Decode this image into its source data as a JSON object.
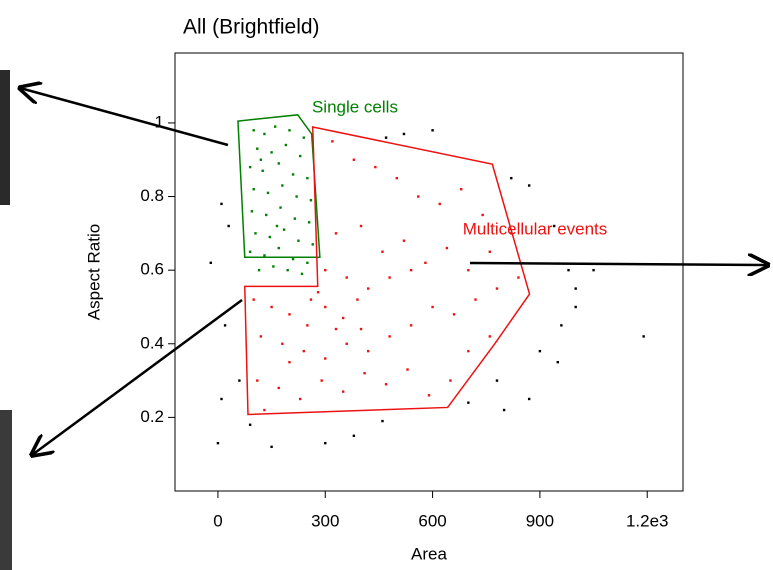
{
  "chart_data": {
    "type": "scatter",
    "title": "All (Brightfield)",
    "x_label": "Area",
    "y_label": "Aspect Ratio",
    "xlim": [
      -120,
      1300
    ],
    "ylim": [
      0,
      1.19
    ],
    "xticks": [
      0,
      300,
      600,
      900,
      {
        "value": 1200,
        "label": "1.2e3"
      }
    ],
    "yticks": [
      0.2,
      0.4,
      0.6,
      0.8,
      1
    ],
    "series": [
      {
        "color": "#000000",
        "x": [
          600,
          520,
          470,
          820,
          870,
          940,
          980,
          1000,
          960,
          900,
          950,
          1190,
          870,
          800,
          700,
          460,
          380,
          300,
          150,
          90,
          0,
          10,
          60,
          20,
          -20,
          30,
          10,
          1000,
          780,
          1050
        ],
        "y": [
          0.98,
          0.97,
          0.96,
          0.85,
          0.83,
          0.72,
          0.6,
          0.55,
          0.45,
          0.38,
          0.35,
          0.42,
          0.25,
          0.22,
          0.24,
          0.19,
          0.15,
          0.13,
          0.12,
          0.18,
          0.13,
          0.25,
          0.3,
          0.45,
          0.62,
          0.72,
          0.78,
          0.5,
          0.3,
          0.6
        ]
      },
      {
        "color": "#008000",
        "x": [
          100,
          130,
          160,
          200,
          240,
          110,
          150,
          190,
          230,
          90,
          125,
          170,
          210,
          250,
          100,
          140,
          180,
          220,
          260,
          95,
          135,
          175,
          215,
          255,
          105,
          145,
          185,
          225,
          265,
          90,
          130,
          170,
          210,
          250,
          115,
          155,
          195,
          235,
          120,
          165
        ],
        "y": [
          0.98,
          0.97,
          0.99,
          0.98,
          0.96,
          0.93,
          0.92,
          0.94,
          0.91,
          0.88,
          0.87,
          0.89,
          0.86,
          0.85,
          0.82,
          0.81,
          0.83,
          0.8,
          0.79,
          0.76,
          0.75,
          0.77,
          0.74,
          0.73,
          0.7,
          0.69,
          0.71,
          0.68,
          0.67,
          0.65,
          0.64,
          0.66,
          0.63,
          0.62,
          0.6,
          0.61,
          0.6,
          0.59,
          0.9,
          0.72
        ]
      },
      {
        "color": "#ee1111",
        "x": [
          100,
          150,
          200,
          250,
          300,
          350,
          400,
          120,
          180,
          240,
          300,
          360,
          420,
          480,
          540,
          600,
          660,
          720,
          780,
          840,
          110,
          170,
          230,
          290,
          350,
          410,
          470,
          530,
          590,
          650,
          700,
          760,
          320,
          380,
          440,
          500,
          560,
          620,
          680,
          740,
          330,
          400,
          460,
          520,
          580,
          640,
          700,
          760,
          820,
          300,
          360,
          420,
          480,
          540,
          280,
          130,
          200,
          260,
          330,
          390
        ],
        "y": [
          0.52,
          0.5,
          0.48,
          0.45,
          0.5,
          0.47,
          0.44,
          0.42,
          0.4,
          0.38,
          0.36,
          0.4,
          0.38,
          0.42,
          0.45,
          0.5,
          0.48,
          0.52,
          0.55,
          0.58,
          0.3,
          0.28,
          0.25,
          0.3,
          0.27,
          0.32,
          0.29,
          0.33,
          0.26,
          0.3,
          0.38,
          0.42,
          0.95,
          0.9,
          0.88,
          0.85,
          0.8,
          0.78,
          0.82,
          0.75,
          0.7,
          0.72,
          0.65,
          0.68,
          0.62,
          0.66,
          0.6,
          0.65,
          0.7,
          0.6,
          0.58,
          0.55,
          0.58,
          0.6,
          0.54,
          0.22,
          0.35,
          0.52,
          0.44,
          0.52
        ]
      }
    ],
    "gates": [
      {
        "label": "Single cells",
        "color": "#008000",
        "x": [
          56,
          223,
          262,
          285,
          75
        ],
        "y": [
          1.005,
          1.022,
          0.97,
          0.635,
          0.635
        ]
      },
      {
        "label": "Multicellular events",
        "color": "#ee1111",
        "x": [
          265,
          767,
          871,
          773,
          642,
          84,
          75,
          279
        ],
        "y": [
          0.989,
          0.888,
          0.535,
          0.399,
          0.227,
          0.208,
          0.556,
          0.556
        ]
      }
    ]
  }
}
